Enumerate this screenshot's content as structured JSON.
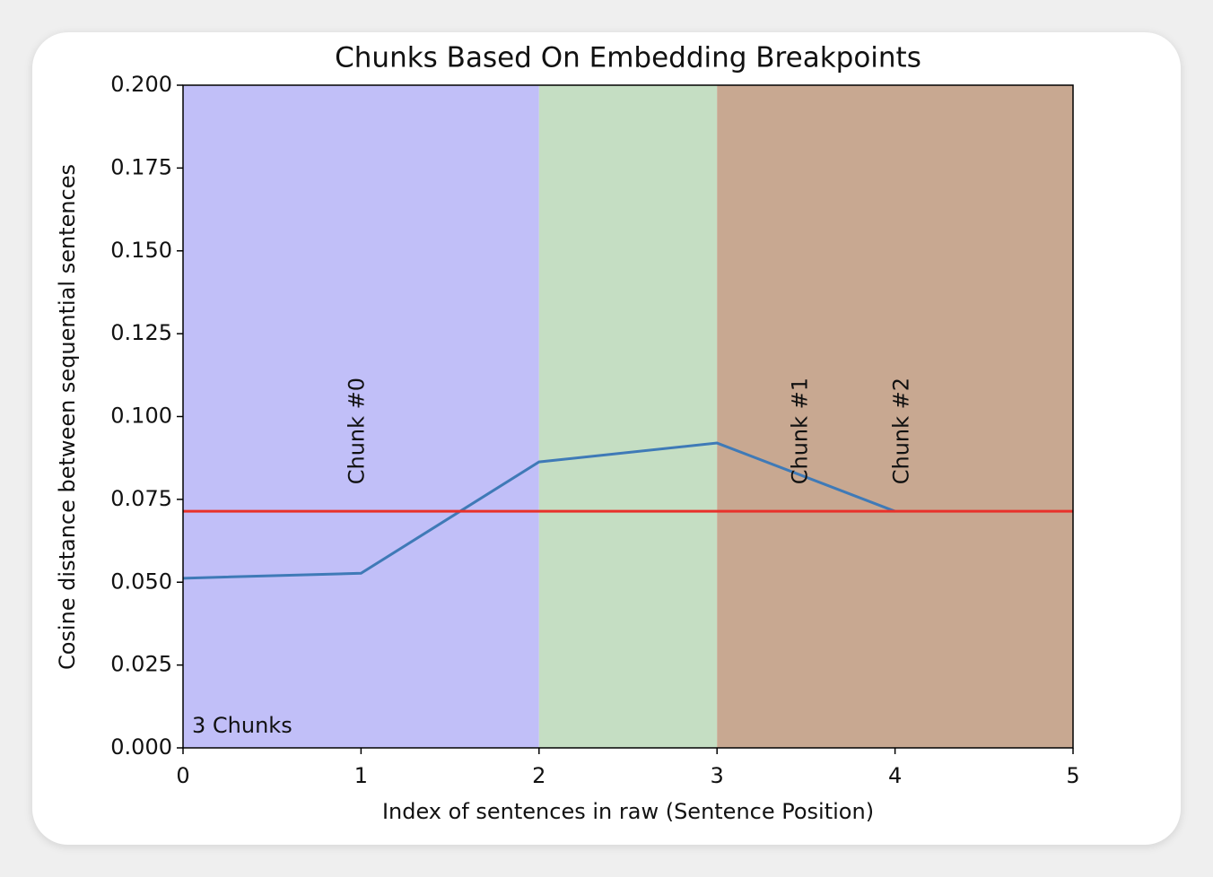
{
  "chart_data": {
    "type": "line",
    "title": "Chunks Based On Embedding Breakpoints",
    "x_label": "Index of sentences in raw (Sentence Position)",
    "y_label": "Cosine distance between sequential sentences",
    "x": [
      0,
      1,
      2,
      3,
      4
    ],
    "series": [
      {
        "color": "#3f7ab7",
        "values": [
          0.0512,
          0.0527,
          0.0863,
          0.092,
          0.0714
        ]
      }
    ],
    "threshold": {
      "value": 0.0714,
      "color": "#e8312a"
    },
    "spans": [
      {
        "range": [
          0,
          2
        ],
        "color": "#c1bff8"
      },
      {
        "range": [
          2,
          3
        ],
        "color": "#c5dec3"
      },
      {
        "range": [
          3,
          5
        ],
        "color": "#c8a891"
      }
    ],
    "chunk_labels": [
      {
        "text": "Chunk #0",
        "x": 0.98,
        "y": 0.0795
      },
      {
        "text": "Chunk #1",
        "x": 3.47,
        "y": 0.0795
      },
      {
        "text": "Chunk #2",
        "x": 4.04,
        "y": 0.0795
      }
    ],
    "corner_label": "3 Chunks",
    "xlim": [
      0,
      5
    ],
    "ylim": [
      0,
      0.2
    ],
    "xticks": [
      0,
      1,
      2,
      3,
      4,
      5
    ],
    "yticks": [
      {
        "value": 0,
        "label": "0.000"
      },
      {
        "value": 0.025,
        "label": "0.025"
      },
      {
        "value": 0.05,
        "label": "0.050"
      },
      {
        "value": 0.075,
        "label": "0.075"
      },
      {
        "value": 0.1,
        "label": "0.100"
      },
      {
        "value": 0.125,
        "label": "0.125"
      },
      {
        "value": 0.15,
        "label": "0.150"
      },
      {
        "value": 0.175,
        "label": "0.175"
      },
      {
        "value": 0.2,
        "label": "0.200"
      }
    ]
  }
}
